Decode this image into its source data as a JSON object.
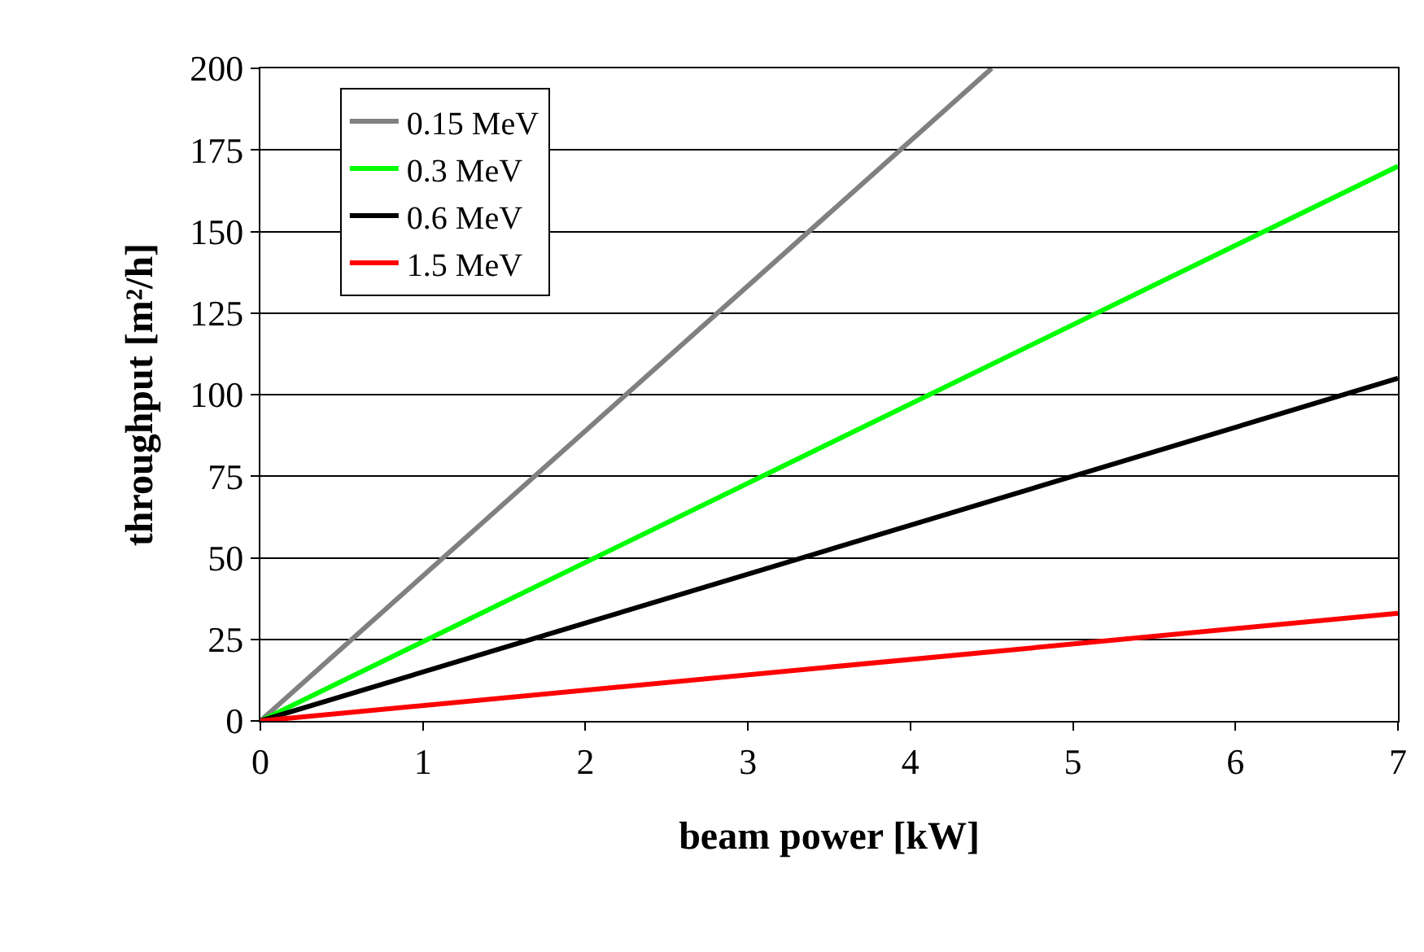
{
  "chart_data": {
    "type": "line",
    "xlabel": "beam power [kW]",
    "ylabel": "throughput [m²/h]",
    "series": [
      {
        "name": "0.15 MeV",
        "color": "#808080",
        "x": [
          0,
          4.5
        ],
        "values": [
          0,
          200
        ]
      },
      {
        "name": "0.3 MeV",
        "color": "#00ff00",
        "x": [
          0,
          7
        ],
        "values": [
          0,
          170
        ]
      },
      {
        "name": "0.6 MeV",
        "color": "#000000",
        "x": [
          0,
          7
        ],
        "values": [
          0,
          105
        ]
      },
      {
        "name": "1.5 MeV",
        "color": "#ff0000",
        "x": [
          0,
          7
        ],
        "values": [
          0,
          33
        ]
      }
    ],
    "xlim": [
      0,
      7
    ],
    "xticks": [
      0,
      1,
      2,
      3,
      4,
      5,
      6,
      7
    ],
    "ylim": [
      0,
      200
    ],
    "yticks": [
      0,
      25,
      50,
      75,
      100,
      125,
      150,
      175,
      200
    ],
    "grid": "y",
    "legend": "top left",
    "marker": "none",
    "line_style": "solid"
  }
}
